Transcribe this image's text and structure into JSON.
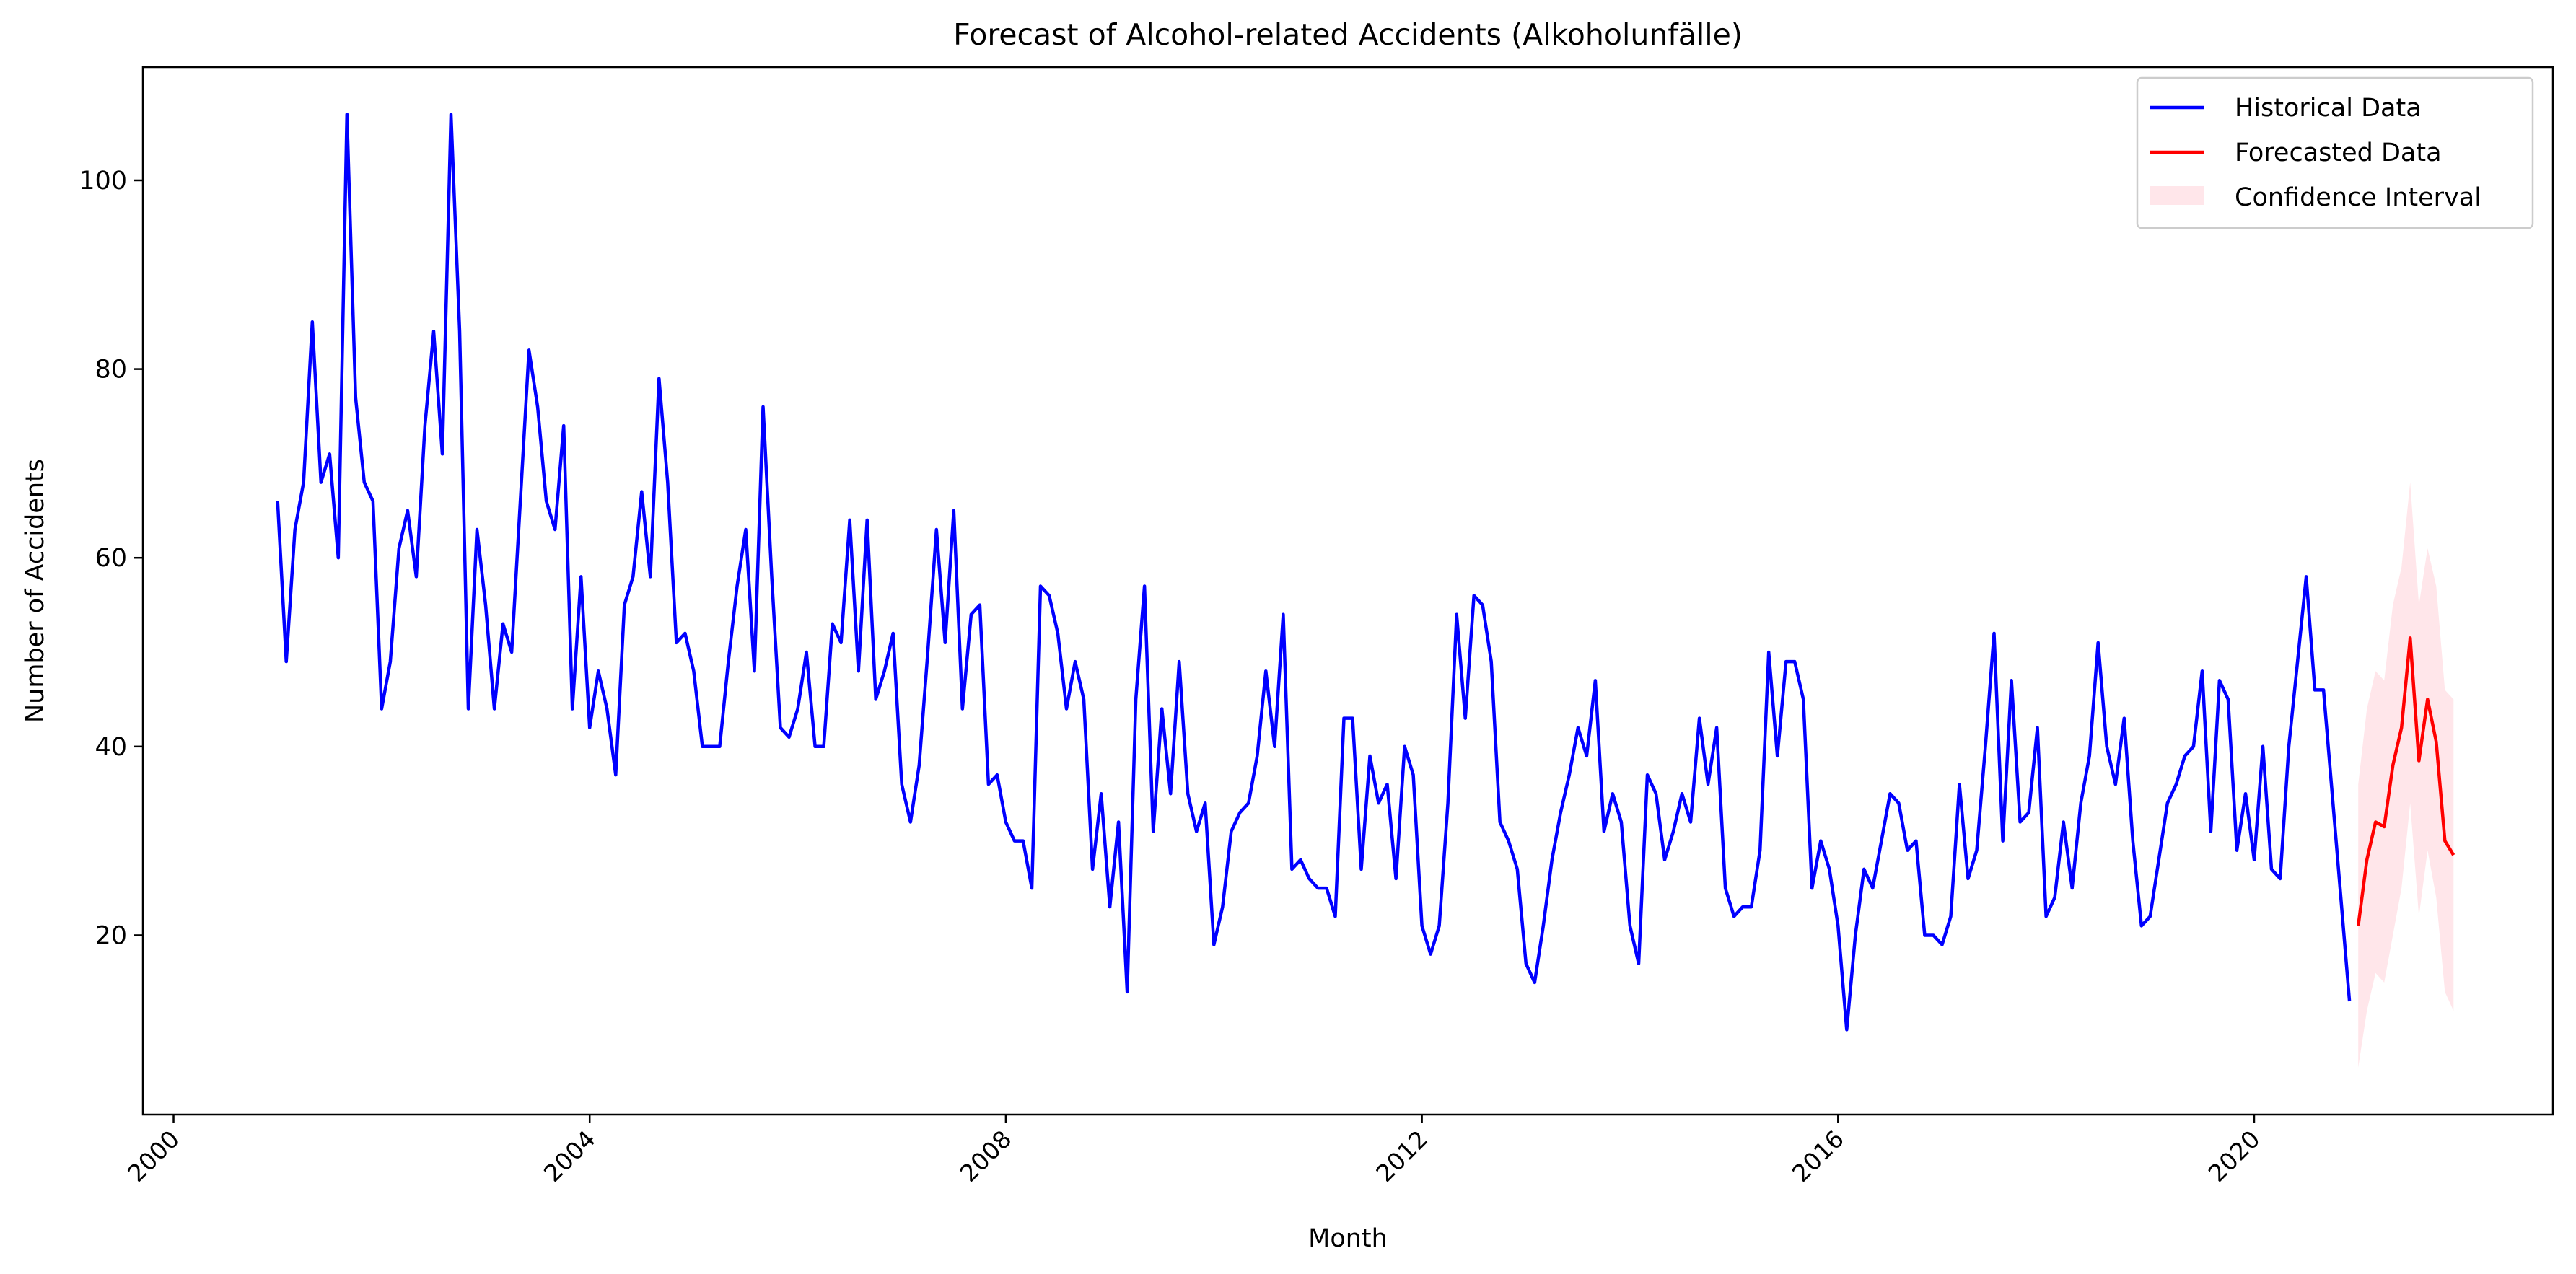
{
  "chart_data": {
    "type": "line",
    "title": "Forecast of Alcohol-related Accidents (Alkoholunfälle)",
    "xlabel": "Month",
    "ylabel": "Number of Accidents",
    "xlim": [
      "1999-09-15",
      "2022-11-15"
    ],
    "ylim": [
      1,
      112
    ],
    "x_ticks": [
      "2000",
      "2004",
      "2008",
      "2012",
      "2016",
      "2020"
    ],
    "y_ticks": [
      20,
      40,
      60,
      80,
      100
    ],
    "grid": false,
    "legend_position": "top-right",
    "colors": {
      "historical": "#0000ff",
      "forecast": "#ff0000",
      "confidence": "#ffc0cb"
    },
    "series": [
      {
        "name": "Historical Data",
        "start": "2001-01",
        "frequency": "monthly",
        "values": [
          66,
          49,
          63,
          68,
          85,
          68,
          71,
          60,
          107,
          77,
          68,
          66,
          44,
          49,
          61,
          65,
          58,
          74,
          84,
          71,
          107,
          84,
          44,
          63,
          55,
          44,
          53,
          50,
          66,
          82,
          76,
          66,
          63,
          74,
          44,
          58,
          42,
          48,
          44,
          37,
          55,
          58,
          67,
          58,
          79,
          68,
          51,
          52,
          48,
          40,
          40,
          40,
          49,
          57,
          63,
          48,
          76,
          58,
          42,
          41,
          44,
          50,
          40,
          40,
          53,
          51,
          64,
          48,
          64,
          45,
          48,
          52,
          36,
          32,
          38,
          50,
          63,
          51,
          65,
          44,
          54,
          55,
          36,
          37,
          32,
          30,
          30,
          25,
          57,
          56,
          52,
          44,
          49,
          45,
          27,
          35,
          23,
          32,
          14,
          45,
          57,
          31,
          44,
          35,
          49,
          35,
          31,
          34,
          19,
          23,
          31,
          33,
          34,
          39,
          48,
          40,
          54,
          27,
          28,
          26,
          25,
          25,
          22,
          43,
          43,
          27,
          39,
          34,
          36,
          26,
          40,
          37,
          21,
          18,
          21,
          34,
          54,
          43,
          56,
          55,
          49,
          32,
          30,
          27,
          17,
          15,
          21,
          28,
          33,
          37,
          42,
          39,
          47,
          31,
          35,
          32,
          21,
          17,
          37,
          35,
          28,
          31,
          35,
          32,
          43,
          36,
          42,
          25,
          22,
          23,
          23,
          29,
          50,
          39,
          49,
          49,
          45,
          25,
          30,
          27,
          21,
          10,
          20,
          27,
          25,
          30,
          35,
          34,
          29,
          30,
          20,
          20,
          19,
          22,
          36,
          26,
          29,
          40,
          52,
          30,
          47,
          32,
          33,
          42,
          22,
          24,
          32,
          25,
          34,
          39,
          51,
          40,
          36,
          43,
          30,
          21,
          22,
          28,
          34,
          36,
          39,
          40,
          48,
          31,
          47,
          45,
          29,
          35,
          28,
          40,
          27,
          26,
          40,
          49,
          58,
          46,
          46,
          35,
          24,
          13
        ]
      },
      {
        "name": "Forecasted Data",
        "start": "2021-01",
        "frequency": "monthly",
        "values": [
          21,
          28,
          32,
          31.5,
          38,
          42,
          51.5,
          38.5,
          45,
          40.5,
          30,
          28.5
        ]
      },
      {
        "name": "Confidence Interval",
        "start": "2021-01",
        "frequency": "monthly",
        "lower": [
          6,
          12,
          16,
          15,
          20,
          25,
          34,
          22,
          29,
          24,
          14,
          12
        ],
        "upper": [
          36,
          44,
          48,
          47,
          55,
          59,
          68,
          55,
          61,
          57,
          46,
          45
        ]
      }
    ]
  }
}
